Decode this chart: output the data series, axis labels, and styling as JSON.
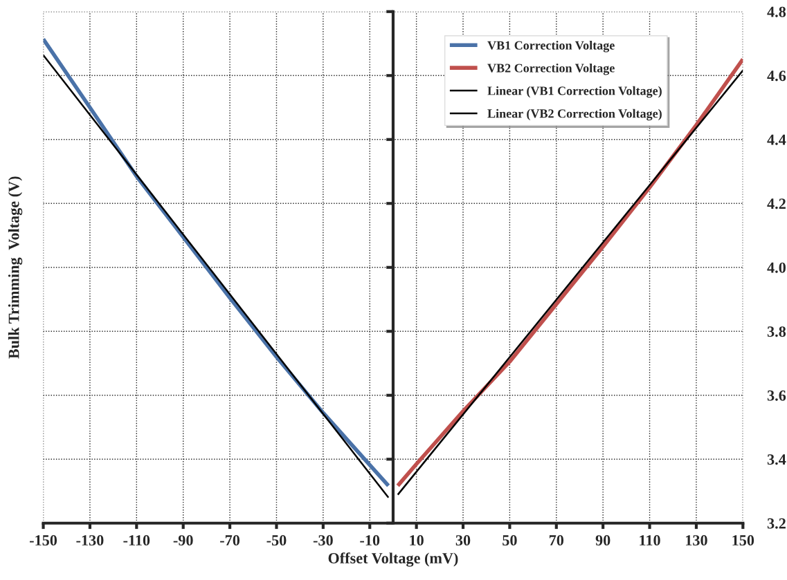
{
  "chart_data": {
    "type": "line",
    "xlabel": "Offset Voltage (mV)",
    "ylabel": "Bulk Trimming  Voltage (V)",
    "xlim": [
      -150,
      150
    ],
    "xticks": [
      -150,
      -130,
      -110,
      -90,
      -70,
      -50,
      -30,
      -10,
      10,
      30,
      50,
      70,
      90,
      110,
      130,
      150
    ],
    "ylim": [
      3.2,
      4.8
    ],
    "yticks": [
      3.2,
      3.4,
      3.6,
      3.8,
      {
        "value": 4.0,
        "label": "4.0"
      },
      4.2,
      4.4,
      4.6,
      4.8
    ],
    "grid": true,
    "legend": "top right",
    "marker": "none",
    "line_style": "solid",
    "series": [
      {
        "name": "VB1 Correction Voltage",
        "color": "#4a72a8",
        "x": [
          -150,
          -130,
          -110,
          -90,
          -70,
          -50,
          -30,
          -10,
          -2
        ],
        "values": [
          4.714,
          4.5,
          4.285,
          4.095,
          3.905,
          3.72,
          3.545,
          3.382,
          3.317
        ]
      },
      {
        "name": "VB2 Correction Voltage",
        "color": "#c0504d",
        "x": [
          2,
          10,
          30,
          50,
          70,
          90,
          110,
          130,
          150
        ],
        "values": [
          3.317,
          3.385,
          3.55,
          3.705,
          3.885,
          4.065,
          4.25,
          4.445,
          4.651
        ]
      },
      {
        "name": "Linear (VB1 Correction Voltage)",
        "color": "#000000",
        "x": [
          -150,
          -2
        ],
        "values": [
          4.664,
          3.28
        ]
      },
      {
        "name": "Linear (VB2 Correction Voltage)",
        "color": "#000000",
        "x": [
          2,
          150
        ],
        "values": [
          3.289,
          4.616
        ]
      }
    ]
  }
}
